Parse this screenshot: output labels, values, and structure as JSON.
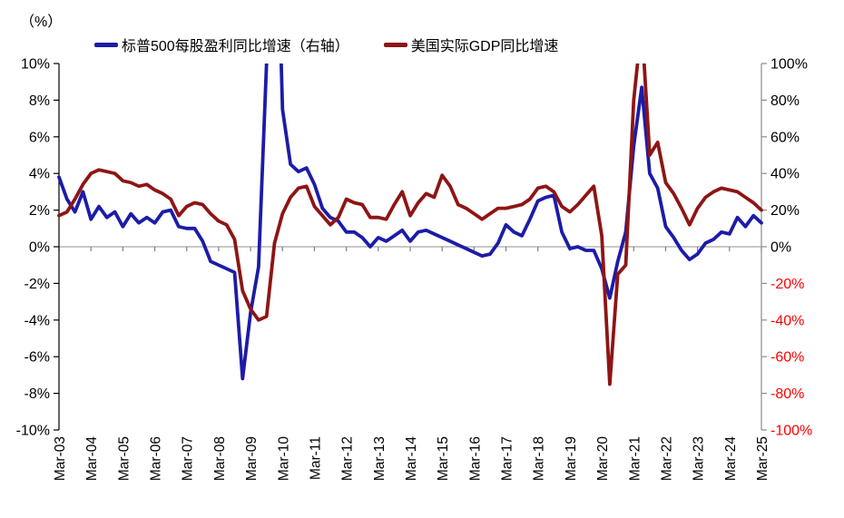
{
  "unit_label": "（%）",
  "legend": [
    {
      "label": "标普500每股盈利同比增速（右轴）",
      "color": "#1c1ca8"
    },
    {
      "label": "美国实际GDP同比增速",
      "color": "#8e1515"
    }
  ],
  "chart_data": {
    "type": "line",
    "x_frequency": "quarterly",
    "x_start": "Mar-03",
    "x_end": "Mar-25",
    "x_tick_labels": [
      "Mar-03",
      "Mar-04",
      "Mar-05",
      "Mar-06",
      "Mar-07",
      "Mar-08",
      "Mar-09",
      "Mar-10",
      "Mar-11",
      "Mar-12",
      "Mar-13",
      "Mar-14",
      "Mar-15",
      "Mar-16",
      "Mar-17",
      "Mar-18",
      "Mar-19",
      "Mar-20",
      "Mar-21",
      "Mar-22",
      "Mar-23",
      "Mar-24",
      "Mar-25"
    ],
    "left_axis": {
      "min": -10,
      "max": 10,
      "step": 2,
      "tick_labels": [
        "10%",
        "8%",
        "6%",
        "4%",
        "2%",
        "0%",
        "-2%",
        "-4%",
        "-6%",
        "-8%",
        "-10%"
      ],
      "label_color": "#000000"
    },
    "right_axis": {
      "min": -100,
      "max": 100,
      "step": 20,
      "tick_labels": [
        "100%",
        "80%",
        "60%",
        "40%",
        "20%",
        "0%",
        "-20%",
        "-40%",
        "-60%",
        "-80%",
        "-100%"
      ],
      "positive_color": "#000000",
      "negative_color": "#ff0000"
    },
    "gridlines": "zero-line-only",
    "legend_position": "top",
    "series": [
      {
        "name": "标普500每股盈利同比增速（右轴）",
        "axis": "right",
        "color": "#1c1ca8",
        "values": [
          38,
          26,
          19,
          30,
          15,
          22,
          16,
          19,
          11,
          18,
          13,
          16,
          13,
          19,
          20,
          11,
          10,
          10,
          3,
          -8,
          -10,
          -12,
          -14,
          -72,
          -36,
          -11,
          100,
          230,
          75,
          45,
          41,
          43,
          34,
          21,
          16,
          14,
          8,
          8,
          5,
          0,
          5,
          3,
          6,
          9,
          3,
          8,
          9,
          7,
          5,
          3,
          1,
          -1,
          -3,
          -5,
          -4,
          2,
          12,
          8,
          6,
          15,
          25,
          27,
          28,
          8,
          -1,
          0,
          -2,
          -2,
          -12,
          -28,
          -8,
          8,
          55,
          87,
          40,
          32,
          11,
          5,
          -2,
          -7,
          -4,
          2,
          4,
          8,
          7,
          16,
          11,
          17,
          13
        ]
      },
      {
        "name": "美国实际GDP同比增速",
        "axis": "left",
        "color": "#8e1515",
        "values": [
          1.7,
          1.9,
          2.6,
          3.4,
          4.0,
          4.2,
          4.1,
          4.0,
          3.6,
          3.5,
          3.3,
          3.4,
          3.1,
          2.9,
          2.6,
          1.7,
          2.2,
          2.4,
          2.3,
          1.8,
          1.4,
          1.2,
          0.4,
          -2.4,
          -3.4,
          -4.0,
          -3.8,
          0.2,
          1.8,
          2.7,
          3.2,
          3.3,
          2.2,
          1.7,
          1.2,
          1.6,
          2.6,
          2.4,
          2.3,
          1.6,
          1.6,
          1.5,
          2.3,
          3.0,
          1.7,
          2.4,
          2.9,
          2.7,
          3.9,
          3.3,
          2.3,
          2.1,
          1.8,
          1.5,
          1.8,
          2.1,
          2.1,
          2.2,
          2.3,
          2.6,
          3.2,
          3.3,
          3.0,
          2.2,
          1.9,
          2.3,
          2.8,
          3.3,
          0.6,
          -7.5,
          -1.5,
          -1.0,
          8.0,
          12.2,
          5.0,
          5.7,
          3.5,
          2.9,
          2.1,
          1.2,
          2.1,
          2.7,
          3.0,
          3.2,
          3.1,
          3.0,
          2.7,
          2.4,
          2.0
        ]
      }
    ],
    "note_clipping": "Values beyond axis range are clipped at plot edges (blue spike Dec-09/Mar-10 above 100%, red spike Jun-21 above 10%)"
  }
}
